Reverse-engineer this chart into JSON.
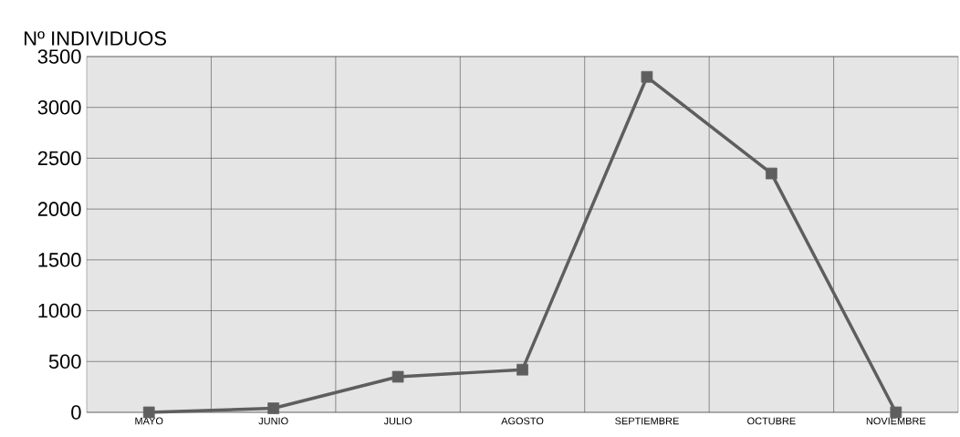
{
  "chart_data": {
    "type": "line",
    "ylabel": "Nº INDIVIDUOS",
    "categories": [
      "MAYO",
      "JUNIO",
      "JULIO",
      "AGOSTO",
      "SEPTIEMBRE",
      "OCTUBRE",
      "NOVIEMBRE"
    ],
    "series": [
      {
        "color": "#5e5e5e",
        "values": [
          0,
          40,
          350,
          420,
          3300,
          2350,
          0
        ]
      }
    ],
    "ylim": [
      0,
      3500
    ],
    "yticks": [
      0,
      500,
      1000,
      1500,
      2000,
      2500,
      3000,
      3500
    ],
    "grid": true,
    "marker": "square",
    "line_style": "solid"
  }
}
